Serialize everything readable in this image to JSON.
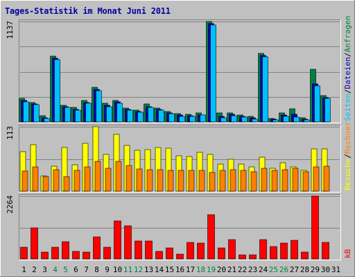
{
  "chart_data": {
    "type": "bar",
    "title": "Tages-Statistik im Monat Juni 2011",
    "categories": [
      "1",
      "2",
      "3",
      "4",
      "5",
      "6",
      "7",
      "8",
      "9",
      "10",
      "11",
      "12",
      "13",
      "14",
      "15",
      "16",
      "17",
      "18",
      "19",
      "20",
      "21",
      "22",
      "23",
      "24",
      "25",
      "26",
      "27",
      "28",
      "29",
      "30",
      "31"
    ],
    "weekend_days": [
      "4",
      "5",
      "11",
      "12",
      "18",
      "19",
      "25",
      "26"
    ],
    "panels": [
      {
        "id": "top",
        "ymax_label": "1137",
        "ymax": 1137,
        "right_label": [
          "Anfragen",
          "/",
          "Dateien",
          "/",
          "Seiten"
        ],
        "series": [
          {
            "name": "Anfragen",
            "color": "#008040",
            "values": [
              265,
              220,
              70,
              745,
              190,
              165,
              245,
              395,
              210,
              240,
              160,
              135,
              200,
              160,
              120,
              95,
              85,
              100,
              1137,
              105,
              100,
              80,
              60,
              775,
              40,
              105,
              150,
              45,
              595,
              300,
              0
            ]
          },
          {
            "name": "Dateien",
            "color": "#0000c0",
            "values": [
              240,
              205,
              45,
              720,
              175,
              140,
              220,
              365,
              185,
              225,
              140,
              120,
              175,
              145,
              105,
              75,
              70,
              80,
              1110,
              60,
              85,
              65,
              45,
              750,
              30,
              75,
              90,
              30,
              430,
              275,
              0
            ]
          },
          {
            "name": "Seiten",
            "color": "#00c0ff",
            "values": [
              230,
              195,
              40,
              705,
              165,
              130,
              210,
              355,
              175,
              210,
              130,
              110,
              165,
              135,
              95,
              65,
              60,
              75,
              1095,
              50,
              70,
              55,
              35,
              735,
              25,
              65,
              55,
              25,
              405,
              265,
              0
            ]
          }
        ]
      },
      {
        "id": "mid",
        "ymax_label": "113",
        "ymax": 113,
        "right_label": [
          "Rechner",
          "/",
          "Besuche"
        ],
        "series": [
          {
            "name": "Besuche",
            "color": "#ffff00",
            "values": [
              69,
              82,
              27,
              44,
              77,
              46,
              84,
              113,
              65,
              100,
              80,
              72,
              73,
              76,
              75,
              62,
              61,
              68,
              64,
              47,
              56,
              47,
              43,
              60,
              40,
              50,
              42,
              36,
              74,
              74,
              0
            ]
          },
          {
            "name": "Rechner",
            "color": "#ff8000",
            "values": [
              35,
              43,
              26,
              38,
              25,
              36,
              42,
              52,
              40,
              52,
              45,
              39,
              38,
              38,
              37,
              36,
              37,
              36,
              33,
              37,
              38,
              36,
              34,
              40,
              36,
              38,
              40,
              34,
              43,
              44,
              0
            ]
          }
        ]
      },
      {
        "id": "bot",
        "ymax_label": "2264",
        "ymax": 2264,
        "right_label": [
          "kB"
        ],
        "series": [
          {
            "name": "kB",
            "color": "#ff0000",
            "values": [
              430,
              1130,
              250,
              430,
              630,
              270,
              260,
              790,
              420,
              1370,
              1190,
              650,
              650,
              270,
              410,
              170,
              600,
              560,
              1590,
              410,
              690,
              160,
              160,
              700,
              460,
              570,
              670,
              260,
              2264,
              590,
              0
            ]
          }
        ]
      }
    ],
    "colors": {
      "panel_bg": "#c0c0c0",
      "frame_bg": "#c0c0c0",
      "title": "#0000a0",
      "gridline": "#808080"
    }
  }
}
